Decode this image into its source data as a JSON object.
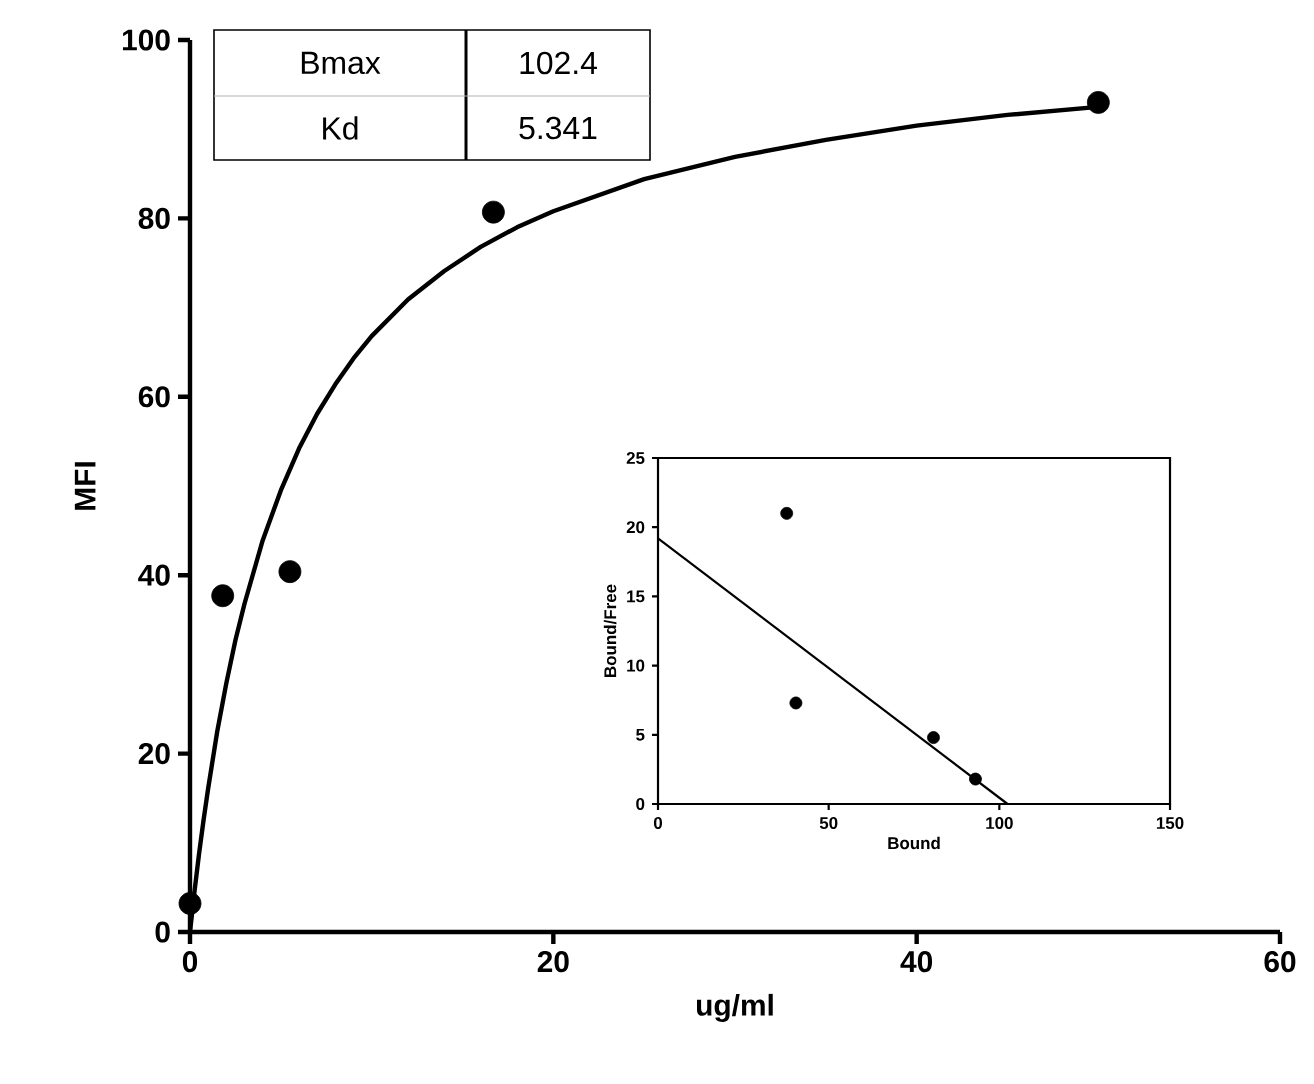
{
  "chart_data": [
    {
      "type": "scatter",
      "xlabel": "ug/ml",
      "ylabel": "MFI",
      "xlim": [
        0,
        60
      ],
      "ylim": [
        0,
        100
      ],
      "xticks": [
        0,
        20,
        40,
        60
      ],
      "yticks": [
        0,
        20,
        40,
        60,
        80,
        100
      ],
      "annotations": [
        "Bmax",
        "102.4",
        "Kd",
        "5.341"
      ],
      "series": [
        {
          "type": "scatter",
          "color": "#000000",
          "marker": "circle",
          "x": [
            0,
            1.8,
            5.5,
            16.7,
            50
          ],
          "values": [
            3.2,
            37.7,
            40.4,
            80.7,
            93
          ]
        },
        {
          "type": "line",
          "color": "#000000",
          "line_style": "solid",
          "x": [
            0,
            0.25,
            0.5,
            0.75,
            1,
            1.5,
            2,
            2.5,
            3,
            4,
            5,
            6,
            7,
            8,
            9,
            10,
            12,
            14,
            16,
            18,
            20,
            25,
            30,
            35,
            40,
            45,
            50
          ],
          "values": [
            0,
            4.6,
            8.8,
            12.6,
            16.1,
            22.5,
            27.9,
            32.7,
            36.8,
            43.9,
            49.5,
            54.2,
            58.1,
            61.4,
            64.3,
            66.8,
            70.9,
            74.1,
            76.8,
            79,
            80.8,
            84.4,
            86.9,
            88.8,
            90.4,
            91.6,
            92.5
          ]
        }
      ]
    },
    {
      "type": "scatter",
      "xlabel": "Bound",
      "ylabel": "Bound/Free",
      "xlim": [
        0,
        150
      ],
      "ylim": [
        0,
        25
      ],
      "xticks": [
        0,
        50,
        100,
        150
      ],
      "yticks": [
        0,
        5,
        10,
        15,
        20,
        25
      ],
      "series": [
        {
          "type": "scatter",
          "color": "#000000",
          "marker": "circle",
          "x": [
            37.7,
            40.4,
            80.7,
            93
          ],
          "values": [
            21,
            7.3,
            4.8,
            1.8
          ]
        },
        {
          "type": "line",
          "color": "#000000",
          "line_style": "solid",
          "x": [
            0,
            102.4
          ],
          "values": [
            19.2,
            0
          ]
        }
      ]
    }
  ]
}
